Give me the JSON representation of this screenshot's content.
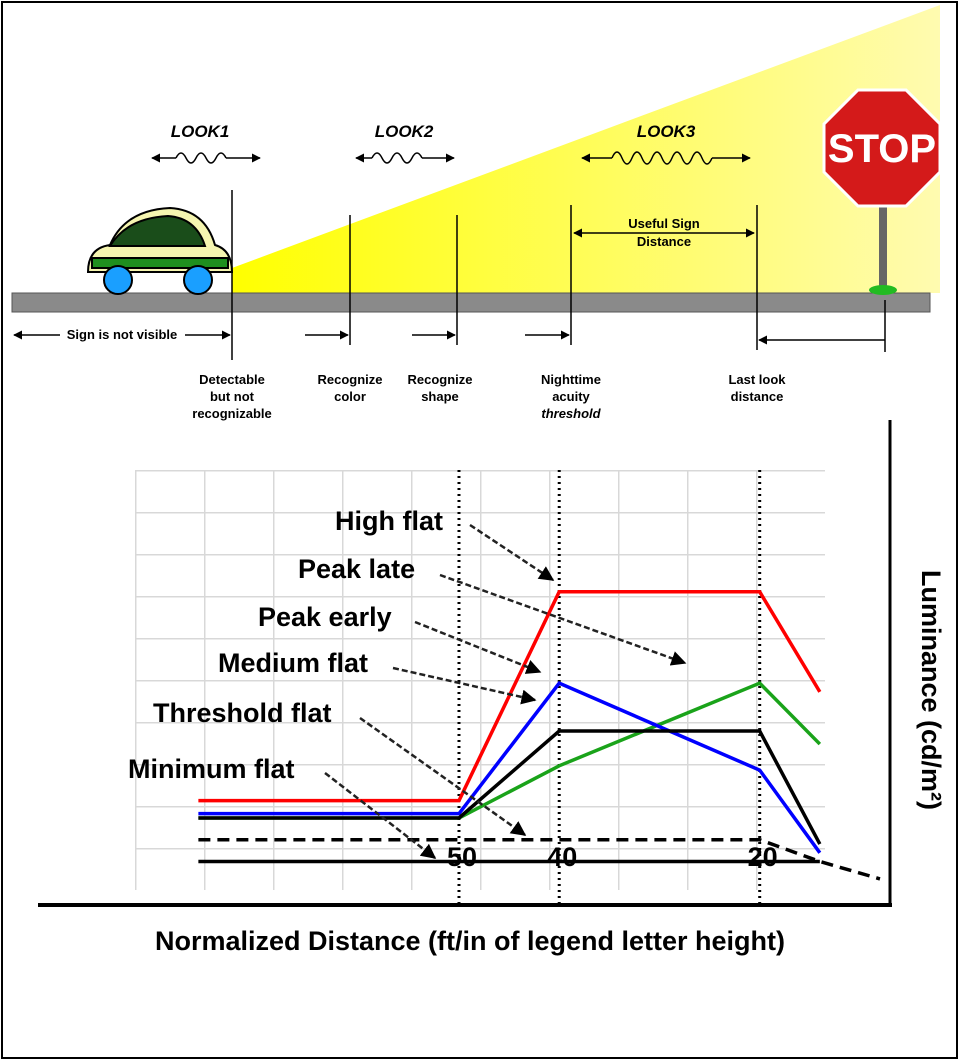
{
  "illustration": {
    "looks": [
      "LOOK1",
      "LOOK2",
      "LOOK3"
    ],
    "stop_sign": "STOP",
    "useful_distance": [
      "Useful Sign",
      "Distance"
    ],
    "not_visible": "Sign is not visible",
    "stages": [
      {
        "lines": [
          "Detectable",
          "but not",
          "recognizable"
        ]
      },
      {
        "lines": [
          "Recognize",
          "color"
        ]
      },
      {
        "lines": [
          "Recognize",
          "shape"
        ]
      },
      {
        "lines": [
          "Nighttime",
          "acuity",
          "threshold"
        ]
      },
      {
        "lines": [
          "Last look",
          "distance"
        ]
      }
    ]
  },
  "chart_data": {
    "type": "line",
    "x_label": "Normalized Distance (ft/in of legend letter height)",
    "y_label": "Luminance (cd/m²)",
    "x": [
      76,
      50,
      40,
      20,
      14,
      8
    ],
    "xlim": [
      92,
      7
    ],
    "ylim": [
      0,
      10
    ],
    "xticks": [
      50,
      40,
      20
    ],
    "grid": true,
    "series": [
      {
        "name": "High flat",
        "color": "#ff0000",
        "values": [
          2.4,
          2.4,
          7.2,
          7.2,
          4.9,
          null
        ]
      },
      {
        "name": "Peak late",
        "color": "#1aa31a",
        "values": [
          2.0,
          2.0,
          3.2,
          5.1,
          3.7,
          null
        ]
      },
      {
        "name": "Peak early",
        "color": "#0000ff",
        "values": [
          2.1,
          2.1,
          5.1,
          3.1,
          1.2,
          null
        ]
      },
      {
        "name": "Medium flat",
        "color": "#000000",
        "values": [
          2.0,
          2.0,
          4.0,
          4.0,
          1.4,
          null
        ]
      },
      {
        "name": "Threshold flat",
        "color": "#000000",
        "line_style": "dashed",
        "values": [
          1.5,
          1.5,
          1.5,
          1.5,
          1.0,
          0.6
        ]
      },
      {
        "name": "Minimum flat",
        "color": "#000000",
        "values": [
          1.0,
          1.0,
          1.0,
          1.0,
          1.0,
          null
        ]
      }
    ]
  }
}
